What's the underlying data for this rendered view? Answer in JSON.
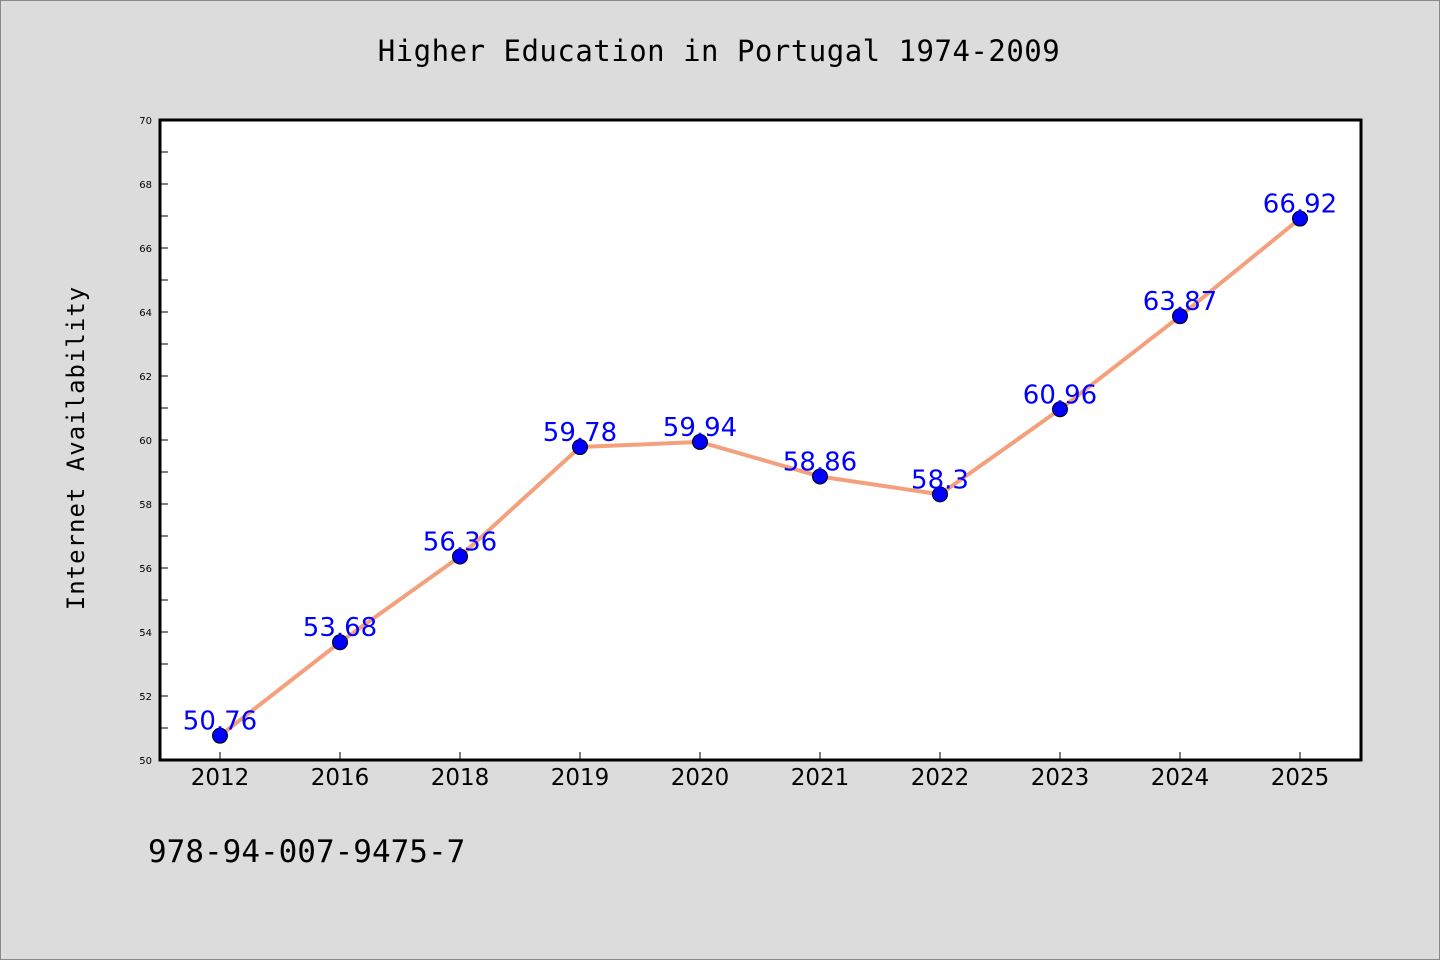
{
  "footer": {
    "id_text": "978-94-007-9475-7"
  },
  "chart_data": {
    "type": "line",
    "title": "Higher Education in Portugal 1974-2009",
    "xlabel": "",
    "ylabel": "Internet Availability",
    "categories": [
      "2012",
      "2016",
      "2018",
      "2019",
      "2020",
      "2021",
      "2022",
      "2023",
      "2024",
      "2025"
    ],
    "series": [
      {
        "values": [
          50.76,
          53.68,
          56.36,
          59.78,
          59.94,
          58.86,
          58.3,
          60.96,
          63.87,
          66.92
        ],
        "labels": [
          "50.76",
          "53.68",
          "56.36",
          "59.78",
          "59.94",
          "58.86",
          "58.3",
          "60.96",
          "63.87",
          "66.92"
        ],
        "line_color": "#f4a07c",
        "marker_color": "#0000ff"
      }
    ],
    "ylim": [
      50,
      70
    ],
    "yticks": [
      50,
      52,
      54,
      56,
      58,
      60,
      62,
      64,
      66,
      68,
      70
    ],
    "grid": false,
    "legend": "none",
    "background": "#dcdcdc",
    "plot_background": "#ffffff"
  }
}
